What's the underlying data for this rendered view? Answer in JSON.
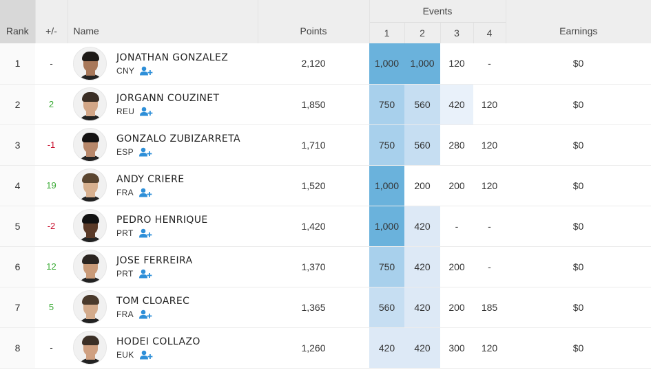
{
  "headers": {
    "rank": "Rank",
    "change": "+/-",
    "name": "Name",
    "points": "Points",
    "events": "Events",
    "event_cols": [
      "1",
      "2",
      "3",
      "4"
    ],
    "earnings": "Earnings"
  },
  "icons": {
    "follow": "add-person-icon",
    "avatar": "athlete-photo"
  },
  "colors": {
    "up": "#3aaa35",
    "down": "#c8102e",
    "follow_icon": "#2e8fd8",
    "heat_max": "#6ab2dc"
  },
  "rows": [
    {
      "rank": "1",
      "change": "-",
      "name": "JONATHAN GONZALEZ",
      "country": "CNY",
      "points": "2,120",
      "events": [
        "1,000",
        "1,000",
        "120",
        "-"
      ],
      "earnings": "$0"
    },
    {
      "rank": "2",
      "change": "2",
      "name": "JORGANN COUZINET",
      "country": "REU",
      "points": "1,850",
      "events": [
        "750",
        "560",
        "420",
        "120"
      ],
      "earnings": "$0"
    },
    {
      "rank": "3",
      "change": "-1",
      "name": "GONZALO ZUBIZARRETA",
      "country": "ESP",
      "points": "1,710",
      "events": [
        "750",
        "560",
        "280",
        "120"
      ],
      "earnings": "$0"
    },
    {
      "rank": "4",
      "change": "19",
      "name": "ANDY CRIERE",
      "country": "FRA",
      "points": "1,520",
      "events": [
        "1,000",
        "200",
        "200",
        "120"
      ],
      "earnings": "$0"
    },
    {
      "rank": "5",
      "change": "-2",
      "name": "PEDRO HENRIQUE",
      "country": "PRT",
      "points": "1,420",
      "events": [
        "1,000",
        "420",
        "-",
        "-"
      ],
      "earnings": "$0"
    },
    {
      "rank": "6",
      "change": "12",
      "name": "JOSE FERREIRA",
      "country": "PRT",
      "points": "1,370",
      "events": [
        "750",
        "420",
        "200",
        "-"
      ],
      "earnings": "$0"
    },
    {
      "rank": "7",
      "change": "5",
      "name": "TOM CLOAREC",
      "country": "FRA",
      "points": "1,365",
      "events": [
        "560",
        "420",
        "200",
        "185"
      ],
      "earnings": "$0"
    },
    {
      "rank": "8",
      "change": "-",
      "name": "HODEI COLLAZO",
      "country": "EUK",
      "points": "1,260",
      "events": [
        "420",
        "420",
        "300",
        "120"
      ],
      "earnings": "$0"
    }
  ]
}
